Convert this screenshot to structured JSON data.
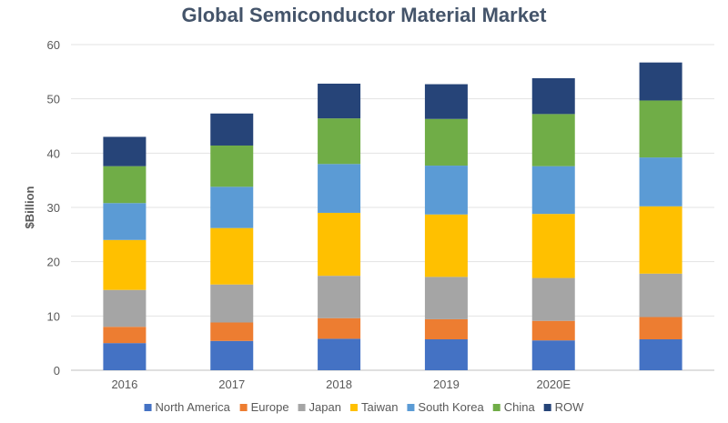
{
  "chart_data": {
    "type": "bar",
    "stacked": true,
    "title": "Global Semiconductor Material Market",
    "xlabel": "",
    "ylabel": "$Billion",
    "ylim": [
      0,
      60
    ],
    "yticks": [
      0,
      10,
      20,
      30,
      40,
      50,
      60
    ],
    "grid": true,
    "legend_position": "bottom",
    "categories": [
      "2016",
      "2017",
      "2018",
      "2019",
      "2020E",
      ""
    ],
    "series": [
      {
        "name": "North America",
        "color": "#4472c4",
        "values": [
          5.0,
          5.4,
          5.8,
          5.7,
          5.5,
          5.7
        ]
      },
      {
        "name": "Europe",
        "color": "#ed7d31",
        "values": [
          3.0,
          3.4,
          3.8,
          3.7,
          3.6,
          4.1
        ]
      },
      {
        "name": "Japan",
        "color": "#a5a5a5",
        "values": [
          6.8,
          7.0,
          7.8,
          7.8,
          7.9,
          8.0
        ]
      },
      {
        "name": "Taiwan",
        "color": "#ffc000",
        "values": [
          9.2,
          10.4,
          11.6,
          11.5,
          11.8,
          12.4
        ]
      },
      {
        "name": "South Korea",
        "color": "#5b9bd5",
        "values": [
          6.8,
          7.6,
          9.0,
          9.0,
          8.8,
          9.0
        ]
      },
      {
        "name": "China",
        "color": "#70ad47",
        "values": [
          6.8,
          7.6,
          8.4,
          8.6,
          9.6,
          10.5
        ]
      },
      {
        "name": "ROW",
        "color": "#264478",
        "values": [
          5.4,
          5.9,
          6.4,
          6.4,
          6.6,
          7.0
        ]
      }
    ]
  }
}
